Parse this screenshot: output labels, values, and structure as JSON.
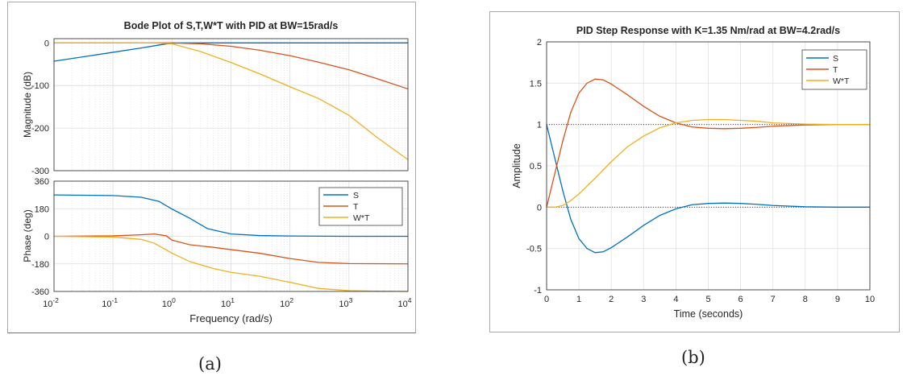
{
  "figure_a": {
    "caption": "(a)",
    "chart_data": {
      "type": "line",
      "title": "Bode Plot of S,T,W*T with PID at BW=15rad/s",
      "xlabel": "Frequency  (rad/s)",
      "xscale": "log",
      "xlim": [
        0.01,
        10000
      ],
      "xticks": [
        0.01,
        0.1,
        1,
        10,
        100,
        1000,
        10000
      ],
      "xticklabels": [
        [
          "10",
          "-2"
        ],
        [
          "10",
          "-1"
        ],
        [
          "10",
          "0"
        ],
        [
          "10",
          "1"
        ],
        [
          "10",
          "2"
        ],
        [
          "10",
          "3"
        ],
        [
          "10",
          "4"
        ]
      ],
      "legend": {
        "entries": [
          "S",
          "T",
          "W*T"
        ],
        "placement": "top-right of phase panel"
      },
      "grid": true,
      "colors": [
        "#0072BD",
        "#D95319",
        "#EDB120"
      ],
      "magnitude": {
        "ylabel": "Magnitude (dB)",
        "ylim": [
          -300,
          10
        ],
        "yticks": [
          0,
          -100,
          -200,
          -300
        ],
        "yticklabels": [
          "0",
          "-100",
          "-200",
          "-300"
        ],
        "series": [
          {
            "name": "S",
            "x": [
              0.01,
              0.03,
              0.1,
              0.3,
              0.6,
              1,
              1.5,
              3,
              10,
              100,
              10000
            ],
            "y": [
              -43,
              -33,
              -22,
              -12,
              -5,
              -0.5,
              0,
              0,
              0,
              0,
              0
            ]
          },
          {
            "name": "T",
            "x": [
              0.01,
              0.1,
              1,
              3,
              10,
              30,
              100,
              300,
              1000,
              3000,
              10000
            ],
            "y": [
              0,
              0,
              0,
              -2,
              -8,
              -17,
              -30,
              -45,
              -63,
              -84,
              -108
            ]
          },
          {
            "name": "W*T",
            "x": [
              0.01,
              0.1,
              0.5,
              1,
              3,
              10,
              30,
              100,
              300,
              1000,
              3000,
              10000
            ],
            "y": [
              0,
              0,
              0,
              -2,
              -20,
              -46,
              -72,
              -103,
              -130,
              -170,
              -222,
              -274
            ]
          }
        ]
      },
      "phase": {
        "ylabel": "Phase (deg)",
        "ylim": [
          -360,
          360
        ],
        "yticks": [
          360,
          180,
          0,
          -180,
          -360
        ],
        "yticklabels": [
          "360",
          "180",
          "0",
          "-180",
          "-360"
        ],
        "series": [
          {
            "name": "S",
            "x": [
              0.01,
              0.1,
              0.3,
              0.6,
              1,
              2,
              4,
              10,
              30,
              100,
              1000,
              10000
            ],
            "y": [
              270,
              266,
              255,
              228,
              178,
              118,
              50,
              15,
              5,
              2,
              0,
              0
            ]
          },
          {
            "name": "T",
            "x": [
              0.01,
              0.1,
              0.3,
              0.5,
              0.8,
              1,
              2,
              5,
              10,
              30,
              100,
              300,
              1000,
              10000
            ],
            "y": [
              0,
              3,
              10,
              15,
              3,
              -25,
              -55,
              -72,
              -87,
              -110,
              -145,
              -170,
              -178,
              -180
            ]
          },
          {
            "name": "W*T",
            "x": [
              0.01,
              0.1,
              0.3,
              0.5,
              1,
              2,
              5,
              10,
              30,
              100,
              300,
              1000,
              3000,
              10000
            ],
            "y": [
              0,
              -5,
              -20,
              -45,
              -110,
              -165,
              -210,
              -235,
              -260,
              -300,
              -340,
              -355,
              -358,
              -360
            ]
          }
        ]
      }
    }
  },
  "figure_b": {
    "caption": "(b)",
    "chart_data": {
      "type": "line",
      "title": "PID Step Response with K=1.35 Nm/rad at BW=4.2rad/s",
      "xlabel": "Time (seconds)",
      "ylabel": "Amplitude",
      "xlim": [
        0,
        10
      ],
      "ylim": [
        -1,
        2
      ],
      "xticks": [
        0,
        1,
        2,
        3,
        4,
        5,
        6,
        7,
        8,
        9,
        10
      ],
      "yticks": [
        -1,
        -0.5,
        0,
        0.5,
        1,
        1.5,
        2
      ],
      "yticklabels": [
        "-1",
        "-0.5",
        "0",
        "0.5",
        "1",
        "1.5",
        "2"
      ],
      "reference_lines": [
        0,
        1
      ],
      "legend": {
        "entries": [
          "S",
          "T",
          "W*T"
        ],
        "placement": "top-right"
      },
      "grid": true,
      "colors": [
        "#0072BD",
        "#D95319",
        "#EDB120"
      ],
      "series": [
        {
          "name": "S",
          "x": [
            0,
            0.25,
            0.5,
            0.75,
            1,
            1.25,
            1.5,
            1.75,
            2,
            2.5,
            3,
            3.5,
            4,
            4.5,
            5,
            5.5,
            6,
            6.5,
            7,
            8,
            9,
            10
          ],
          "y": [
            1,
            0.6,
            0.2,
            -0.15,
            -0.38,
            -0.5,
            -0.55,
            -0.54,
            -0.49,
            -0.36,
            -0.22,
            -0.1,
            -0.02,
            0.03,
            0.045,
            0.05,
            0.045,
            0.035,
            0.02,
            0.005,
            0,
            0
          ]
        },
        {
          "name": "T",
          "x": [
            0,
            0.25,
            0.5,
            0.75,
            1,
            1.25,
            1.5,
            1.75,
            2,
            2.5,
            3,
            3.5,
            4,
            4.5,
            5,
            5.5,
            6,
            6.5,
            7,
            8,
            9,
            10
          ],
          "y": [
            0,
            0.4,
            0.8,
            1.15,
            1.38,
            1.5,
            1.55,
            1.54,
            1.49,
            1.36,
            1.22,
            1.1,
            1.02,
            0.97,
            0.955,
            0.95,
            0.955,
            0.965,
            0.98,
            0.995,
            1,
            1
          ]
        },
        {
          "name": "W*T",
          "x": [
            0,
            0.25,
            0.5,
            0.75,
            1,
            1.5,
            2,
            2.5,
            3,
            3.5,
            4,
            4.5,
            5,
            5.5,
            6,
            6.5,
            7,
            8,
            9,
            10
          ],
          "y": [
            0,
            0,
            0.02,
            0.08,
            0.16,
            0.35,
            0.55,
            0.73,
            0.86,
            0.96,
            1.02,
            1.05,
            1.06,
            1.06,
            1.05,
            1.04,
            1.02,
            1.005,
            1,
            1
          ]
        }
      ]
    }
  }
}
